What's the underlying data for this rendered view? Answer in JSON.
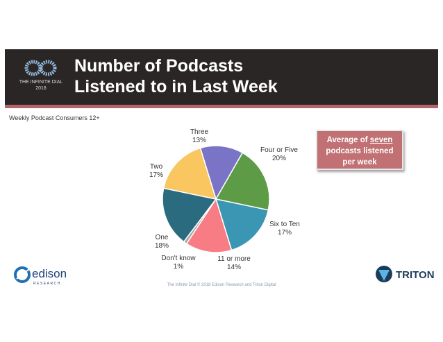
{
  "header": {
    "title_line1": "Number of Podcasts",
    "title_line2": "Listened to in Last Week",
    "logo_line1": "THE INFINITE DIAL",
    "logo_line2": "2018"
  },
  "subtitle": "Weekly Podcast Consumers 12+",
  "callout": {
    "pre": "Average of",
    "highlight": "seven",
    "line2": "podcasts listened",
    "line3": "per week"
  },
  "footer": "The Infinite Dial  © 2018 Edison Research and Triton Digital",
  "brands": {
    "left": "edison",
    "left_sub": "RESEARCH",
    "right": "TRITON"
  },
  "colors": {
    "header_bg": "#2b2626",
    "accent": "#b3666a",
    "callout_bg": "#c17073"
  },
  "chart_data": {
    "type": "pie",
    "title": "Number of Podcasts Listened to in Last Week",
    "slices": [
      {
        "label": "Three",
        "value": 13,
        "value_label": "13%",
        "color": "#7a74c6"
      },
      {
        "label": "Four or Five",
        "value": 20,
        "value_label": "20%",
        "color": "#5e9b46"
      },
      {
        "label": "Six to Ten",
        "value": 17,
        "value_label": "17%",
        "color": "#3a96b2"
      },
      {
        "label": "11 or more",
        "value": 14,
        "value_label": "14%",
        "color": "#f87c84"
      },
      {
        "label": "Don't know",
        "value": 1,
        "value_label": "1%",
        "color": "#a6a6a6"
      },
      {
        "label": "One",
        "value": 18,
        "value_label": "18%",
        "color": "#2b6b80"
      },
      {
        "label": "Two",
        "value": 17,
        "value_label": "17%",
        "color": "#f9c660"
      }
    ]
  }
}
